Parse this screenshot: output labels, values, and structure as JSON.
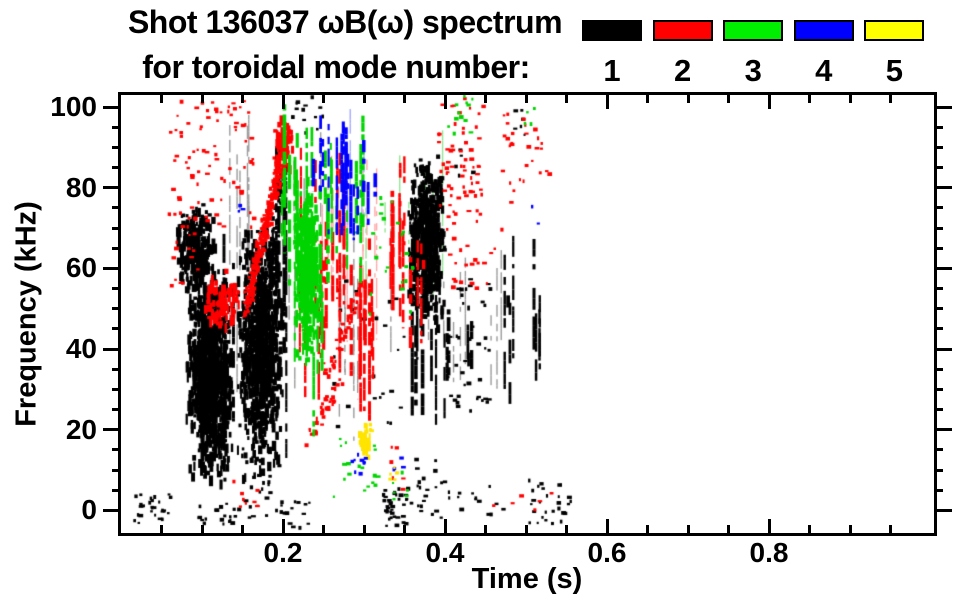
{
  "header": {
    "title_line1": "Shot 136037 ωB(ω) spectrum",
    "title_line2": "for toroidal mode number:"
  },
  "legend": {
    "entries": [
      {
        "label": "1",
        "color": "#000000"
      },
      {
        "label": "2",
        "color": "#ff0000"
      },
      {
        "label": "3",
        "color": "#00ee00"
      },
      {
        "label": "4",
        "color": "#0000ff"
      },
      {
        "label": "5",
        "color": "#ffff00"
      }
    ]
  },
  "chart_data": {
    "type": "scatter",
    "title": "Shot 136037 ωB(ω) spectrum for toroidal mode number: 1 2 3 4 5",
    "xlabel": "Time (s)",
    "ylabel": "Frequency (kHz)",
    "xlim": [
      0,
      1.0037
    ],
    "ylim": [
      -5.6,
      103
    ],
    "grid": false,
    "legend_position": "top-right",
    "xticks": {
      "major": [
        0.2,
        0.4,
        0.6,
        0.8
      ],
      "major_labels": [
        "0.2",
        "0.4",
        "0.6",
        "0.8"
      ],
      "minor_step": 0.05
    },
    "yticks": {
      "major": [
        0,
        20,
        40,
        60,
        80,
        100
      ],
      "major_labels": [
        "0",
        "20",
        "40",
        "60",
        "80",
        "100"
      ],
      "minor_step": 5
    },
    "modes": [
      {
        "n": 1,
        "color": "#000000"
      },
      {
        "n": 2,
        "color": "#ff0000"
      },
      {
        "n": 3,
        "color": "#00d400"
      },
      {
        "n": 4,
        "color": "#0000ff"
      },
      {
        "n": 5,
        "color": "#ffe400"
      }
    ],
    "faint_colors": {
      "1": "#9c9c9c",
      "2": "#ffa8a8",
      "3": "#93e693",
      "4": "#a3abff"
    },
    "seed": 20137,
    "clusters": [
      {
        "mode": 1,
        "style": "strands",
        "t": [
          0.118,
          0.158
        ],
        "f": [
          25,
          100
        ],
        "n": 6,
        "faint": true
      },
      {
        "mode": 1,
        "style": "strands",
        "t": [
          0.205,
          0.345
        ],
        "f": [
          15,
          75
        ],
        "n": 12,
        "faint": true
      },
      {
        "mode": 1,
        "style": "strands",
        "t": [
          0.36,
          0.5
        ],
        "f": [
          20,
          70
        ],
        "n": 8,
        "faint": true
      },
      {
        "mode": 1,
        "style": "strands",
        "t": [
          0.2,
          0.26
        ],
        "f": [
          60,
          102
        ],
        "n": 5,
        "faint": true
      },
      {
        "mode": 2,
        "style": "strands",
        "t": [
          0.215,
          0.32
        ],
        "f": [
          40,
          88
        ],
        "n": 14,
        "faint": true
      },
      {
        "mode": 3,
        "style": "strands",
        "t": [
          0.3,
          0.4
        ],
        "f": [
          45,
          95
        ],
        "n": 8,
        "faint": true
      },
      {
        "mode": 4,
        "style": "strands",
        "t": [
          0.24,
          0.31
        ],
        "f": [
          65,
          100
        ],
        "n": 6,
        "faint": true
      },
      {
        "mode": 1,
        "style": "dots",
        "t": [
          0.015,
          0.062
        ],
        "f": [
          -3,
          4.5
        ],
        "n": 28
      },
      {
        "mode": 1,
        "style": "dots",
        "t": [
          0.09,
          0.145
        ],
        "f": [
          -3.5,
          2
        ],
        "n": 20
      },
      {
        "mode": 1,
        "style": "blob",
        "t": [
          0.063,
          0.115
        ],
        "f": [
          55,
          77
        ],
        "n": 240
      },
      {
        "mode": 1,
        "style": "blob",
        "t": [
          0.078,
          0.138
        ],
        "f": [
          7,
          60
        ],
        "n": 950
      },
      {
        "mode": 1,
        "style": "strands",
        "t": [
          0.08,
          0.142
        ],
        "f": [
          7,
          70
        ],
        "n": 10
      },
      {
        "mode": 1,
        "style": "blob",
        "t": [
          0.142,
          0.2
        ],
        "f": [
          8,
          74
        ],
        "n": 900
      },
      {
        "mode": 1,
        "style": "chirp",
        "t": [
          0.168,
          0.198
        ],
        "f": [
          42,
          84
        ],
        "n": 130
      },
      {
        "mode": 1,
        "style": "strands",
        "t": [
          0.19,
          0.206
        ],
        "f": [
          12,
          100
        ],
        "n": 5
      },
      {
        "mode": 1,
        "style": "dots",
        "t": [
          0.15,
          0.185
        ],
        "f": [
          -2,
          10
        ],
        "n": 16
      },
      {
        "mode": 1,
        "style": "dots",
        "t": [
          0.19,
          0.235
        ],
        "f": [
          -4,
          3
        ],
        "n": 16
      },
      {
        "mode": 1,
        "style": "dots",
        "t": [
          0.2,
          0.25
        ],
        "f": [
          94,
          103
        ],
        "n": 14
      },
      {
        "mode": 1,
        "style": "dots",
        "t": [
          0.255,
          0.35
        ],
        "f": [
          20,
          60
        ],
        "n": 25
      },
      {
        "mode": 1,
        "style": "blob",
        "t": [
          0.352,
          0.4
        ],
        "f": [
          45,
          90
        ],
        "n": 560
      },
      {
        "mode": 1,
        "style": "strands",
        "t": [
          0.355,
          0.41
        ],
        "f": [
          20,
          55
        ],
        "n": 9
      },
      {
        "mode": 1,
        "style": "dots",
        "t": [
          0.4,
          0.455
        ],
        "f": [
          25,
          60
        ],
        "n": 40
      },
      {
        "mode": 1,
        "style": "strands",
        "t": [
          0.424,
          0.434
        ],
        "f": [
          28,
          56
        ],
        "n": 3
      },
      {
        "mode": 1,
        "style": "dots",
        "t": [
          0.41,
          0.44
        ],
        "f": [
          82,
          92
        ],
        "n": 5
      },
      {
        "mode": 1,
        "style": "strands",
        "t": [
          0.468,
          0.486
        ],
        "f": [
          12,
          70
        ],
        "n": 4
      },
      {
        "mode": 1,
        "style": "strands",
        "t": [
          0.508,
          0.52
        ],
        "f": [
          28,
          68
        ],
        "n": 4
      },
      {
        "mode": 1,
        "style": "dots",
        "t": [
          0.483,
          0.497
        ],
        "f": [
          93,
          102
        ],
        "n": 6
      },
      {
        "mode": 1,
        "style": "dots",
        "t": [
          0.32,
          0.357
        ],
        "f": [
          -4,
          6
        ],
        "n": 40
      },
      {
        "mode": 1,
        "style": "dots",
        "t": [
          0.36,
          0.47
        ],
        "f": [
          -2,
          8
        ],
        "n": 22
      },
      {
        "mode": 1,
        "style": "dots",
        "t": [
          0.36,
          0.4
        ],
        "f": [
          0,
          14
        ],
        "n": 12
      },
      {
        "mode": 1,
        "style": "dots",
        "t": [
          0.5,
          0.555
        ],
        "f": [
          -3,
          9
        ],
        "n": 28
      },
      {
        "mode": 2,
        "style": "dots",
        "t": [
          0.055,
          0.165
        ],
        "f": [
          70,
          102
        ],
        "n": 80
      },
      {
        "mode": 2,
        "style": "dots",
        "t": [
          0.06,
          0.095
        ],
        "f": [
          55,
          75
        ],
        "n": 20
      },
      {
        "mode": 2,
        "style": "blob",
        "t": [
          0.1,
          0.148
        ],
        "f": [
          46,
          60
        ],
        "n": 85
      },
      {
        "mode": 2,
        "style": "chirp",
        "t": [
          0.152,
          0.205
        ],
        "f": [
          50,
          95
        ],
        "n": 300
      },
      {
        "mode": 2,
        "style": "blob",
        "t": [
          0.183,
          0.212
        ],
        "f": [
          84,
          100
        ],
        "n": 70
      },
      {
        "mode": 2,
        "style": "dots",
        "t": [
          0.125,
          0.17
        ],
        "f": [
          1,
          9
        ],
        "n": 9
      },
      {
        "mode": 2,
        "style": "strands",
        "t": [
          0.212,
          0.275
        ],
        "f": [
          25,
          90
        ],
        "n": 13
      },
      {
        "mode": 2,
        "style": "strands",
        "t": [
          0.275,
          0.31
        ],
        "f": [
          15,
          70
        ],
        "n": 8
      },
      {
        "mode": 2,
        "style": "chirp",
        "t": [
          0.228,
          0.268
        ],
        "f": [
          18,
          31
        ],
        "n": 36
      },
      {
        "mode": 2,
        "style": "chirp",
        "t": [
          0.25,
          0.3
        ],
        "f": [
          33,
          58
        ],
        "n": 50
      },
      {
        "mode": 2,
        "style": "strands",
        "t": [
          0.325,
          0.35
        ],
        "f": [
          40,
          92
        ],
        "n": 7
      },
      {
        "mode": 2,
        "style": "strands",
        "t": [
          0.35,
          0.372
        ],
        "f": [
          40,
          75
        ],
        "n": 4
      },
      {
        "mode": 2,
        "style": "dots",
        "t": [
          0.39,
          0.445
        ],
        "f": [
          72,
          103
        ],
        "n": 65
      },
      {
        "mode": 2,
        "style": "dots",
        "t": [
          0.4,
          0.47
        ],
        "f": [
          55,
          72
        ],
        "n": 22
      },
      {
        "mode": 2,
        "style": "dots",
        "t": [
          0.468,
          0.502
        ],
        "f": [
          75,
          100
        ],
        "n": 20
      },
      {
        "mode": 2,
        "style": "dots",
        "t": [
          0.5,
          0.527
        ],
        "f": [
          78,
          95
        ],
        "n": 9
      },
      {
        "mode": 2,
        "style": "dots",
        "t": [
          0.455,
          0.53
        ],
        "f": [
          0,
          6
        ],
        "n": 6
      },
      {
        "mode": 2,
        "style": "dots",
        "t": [
          0.33,
          0.347
        ],
        "f": [
          3,
          17
        ],
        "n": 6
      },
      {
        "mode": 3,
        "style": "strands",
        "t": [
          0.196,
          0.216
        ],
        "f": [
          55,
          103
        ],
        "n": 7
      },
      {
        "mode": 3,
        "style": "blob",
        "t": [
          0.212,
          0.242
        ],
        "f": [
          36,
          85
        ],
        "n": 380
      },
      {
        "mode": 3,
        "style": "strands",
        "t": [
          0.208,
          0.25
        ],
        "f": [
          15,
          100
        ],
        "n": 8
      },
      {
        "mode": 3,
        "style": "strands",
        "t": [
          0.25,
          0.305
        ],
        "f": [
          55,
          100
        ],
        "n": 9
      },
      {
        "mode": 3,
        "style": "dots",
        "t": [
          0.26,
          0.315
        ],
        "f": [
          3,
          18
        ],
        "n": 20
      },
      {
        "mode": 3,
        "style": "dots",
        "t": [
          0.305,
          0.36
        ],
        "f": [
          48,
          78
        ],
        "n": 22
      },
      {
        "mode": 3,
        "style": "dots",
        "t": [
          0.4,
          0.435
        ],
        "f": [
          92,
          103
        ],
        "n": 12
      },
      {
        "mode": 3,
        "style": "dots",
        "t": [
          0.49,
          0.51
        ],
        "f": [
          94,
          102
        ],
        "n": 4
      },
      {
        "mode": 3,
        "style": "dots",
        "t": [
          0.33,
          0.352
        ],
        "f": [
          3,
          10
        ],
        "n": 6
      },
      {
        "mode": 4,
        "style": "strands",
        "t": [
          0.235,
          0.262
        ],
        "f": [
          68,
          98
        ],
        "n": 5
      },
      {
        "mode": 4,
        "style": "strands",
        "t": [
          0.265,
          0.292
        ],
        "f": [
          66,
          102
        ],
        "n": 10
      },
      {
        "mode": 4,
        "style": "strands",
        "t": [
          0.295,
          0.316
        ],
        "f": [
          68,
          92
        ],
        "n": 4
      },
      {
        "mode": 4,
        "style": "dots",
        "t": [
          0.282,
          0.3
        ],
        "f": [
          8,
          15
        ],
        "n": 9
      },
      {
        "mode": 4,
        "style": "dots",
        "t": [
          0.14,
          0.152
        ],
        "f": [
          70,
          78
        ],
        "n": 3
      },
      {
        "mode": 4,
        "style": "dots",
        "t": [
          0.505,
          0.517
        ],
        "f": [
          71,
          77
        ],
        "n": 2
      },
      {
        "mode": 4,
        "style": "dots",
        "t": [
          0.335,
          0.347
        ],
        "f": [
          8,
          16
        ],
        "n": 4
      },
      {
        "mode": 5,
        "style": "blob",
        "t": [
          0.292,
          0.308
        ],
        "f": [
          13,
          22
        ],
        "n": 24
      },
      {
        "mode": 5,
        "style": "dots",
        "t": [
          0.328,
          0.34
        ],
        "f": [
          7,
          11
        ],
        "n": 5
      },
      {
        "mode": 5,
        "style": "dots",
        "t": [
          0.3,
          0.312
        ],
        "f": [
          20,
          24
        ],
        "n": 4
      }
    ]
  }
}
